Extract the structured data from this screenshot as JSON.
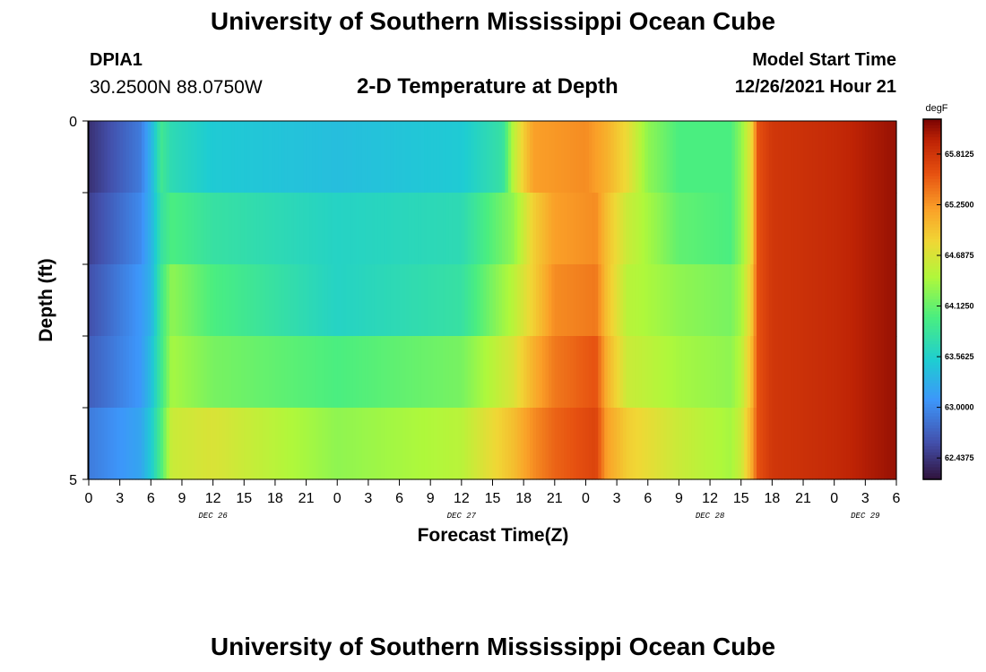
{
  "header": {
    "title": "University of Southern Mississippi Ocean Cube",
    "station": "DPIA1",
    "coords": "30.2500N  88.0750W",
    "subtitle": "2-D Temperature at Depth",
    "start_label": "Model Start Time",
    "start_value": "12/26/2021 Hour 21"
  },
  "footer": {
    "title": "University of Southern Mississippi Ocean Cube"
  },
  "chart_data": {
    "type": "heatmap",
    "xlabel": "Forecast Time(Z)",
    "ylabel": "Depth (ft)",
    "x_hours": [
      0,
      3,
      6,
      9,
      12,
      15,
      18,
      21,
      24,
      27,
      30,
      33,
      36,
      39,
      42,
      45,
      48,
      51,
      54,
      57,
      60,
      63,
      66,
      69,
      72,
      75,
      78
    ],
    "x_tick_labels": [
      "0",
      "3",
      "6",
      "9",
      "12",
      "15",
      "18",
      "21",
      "0",
      "3",
      "6",
      "9",
      "12",
      "15",
      "18",
      "21",
      "0",
      "3",
      "6",
      "9",
      "12",
      "15",
      "18",
      "21",
      "0",
      "3",
      "6"
    ],
    "xlim_hours": [
      0,
      78
    ],
    "date_labels": [
      {
        "hour": 12,
        "text": "DEC 26"
      },
      {
        "hour": 36,
        "text": "DEC 27"
      },
      {
        "hour": 60,
        "text": "DEC 28"
      },
      {
        "hour": 75,
        "text": "DEC 29"
      }
    ],
    "ylim": [
      0,
      5
    ],
    "y_tick_labels": [
      "0",
      "5"
    ],
    "depth_rows": 5,
    "colorbar": {
      "unit": "degF",
      "vmin": 62.2,
      "vmax": 66.2,
      "tick_values": [
        62.4375,
        63.0,
        63.5625,
        64.125,
        64.6875,
        65.25,
        65.8125
      ],
      "tick_labels": [
        "62.4375",
        "63.0000",
        "63.5625",
        "64.1250",
        "64.6875",
        "65.2500",
        "65.8125"
      ]
    },
    "temperature_profiles": [
      {
        "depth_row": "top",
        "points": [
          [
            0,
            62.4
          ],
          [
            5,
            62.9
          ],
          [
            6,
            63.3
          ],
          [
            7,
            63.9
          ],
          [
            8,
            63.7
          ],
          [
            12,
            63.5
          ],
          [
            24,
            63.4
          ],
          [
            36,
            63.5
          ],
          [
            40,
            63.8
          ],
          [
            41,
            64.5
          ],
          [
            42,
            64.9
          ],
          [
            43,
            65.2
          ],
          [
            48,
            65.3
          ],
          [
            50,
            65.1
          ],
          [
            52,
            64.8
          ],
          [
            54,
            64.3
          ],
          [
            57,
            64.0
          ],
          [
            62,
            64.0
          ],
          [
            63,
            64.3
          ],
          [
            64,
            64.8
          ],
          [
            64.6,
            65.6
          ],
          [
            66,
            65.8
          ],
          [
            72,
            65.9
          ],
          [
            78,
            66.1
          ]
        ]
      },
      {
        "depth_row": "mid1",
        "points": [
          [
            0,
            62.5
          ],
          [
            5,
            63.0
          ],
          [
            6,
            63.3
          ],
          [
            7,
            63.8
          ],
          [
            8,
            64.0
          ],
          [
            12,
            63.8
          ],
          [
            24,
            63.6
          ],
          [
            36,
            63.7
          ],
          [
            41,
            64.3
          ],
          [
            43,
            64.9
          ],
          [
            45,
            65.2
          ],
          [
            49,
            65.3
          ],
          [
            50,
            65.0
          ],
          [
            52,
            64.6
          ],
          [
            57,
            64.1
          ],
          [
            62,
            64.0
          ],
          [
            63,
            64.3
          ],
          [
            64,
            64.8
          ],
          [
            64.6,
            65.6
          ],
          [
            66,
            65.8
          ],
          [
            72,
            65.9
          ],
          [
            78,
            66.1
          ]
        ]
      },
      {
        "depth_row": "mid2",
        "points": [
          [
            0,
            62.6
          ],
          [
            5,
            63.1
          ],
          [
            6,
            63.3
          ],
          [
            7,
            63.9
          ],
          [
            8,
            64.3
          ],
          [
            12,
            64.0
          ],
          [
            24,
            63.6
          ],
          [
            36,
            63.8
          ],
          [
            41,
            64.5
          ],
          [
            43,
            64.9
          ],
          [
            45,
            65.3
          ],
          [
            49,
            65.4
          ],
          [
            50,
            65.0
          ],
          [
            52,
            64.5
          ],
          [
            57,
            64.3
          ],
          [
            62,
            64.2
          ],
          [
            63,
            64.4
          ],
          [
            64,
            64.9
          ],
          [
            64.6,
            65.6
          ],
          [
            66,
            65.8
          ],
          [
            72,
            65.9
          ],
          [
            78,
            66.1
          ]
        ]
      },
      {
        "depth_row": "mid3",
        "points": [
          [
            0,
            62.7
          ],
          [
            5,
            63.1
          ],
          [
            6,
            63.4
          ],
          [
            7,
            63.9
          ],
          [
            8,
            64.4
          ],
          [
            12,
            64.2
          ],
          [
            24,
            64.0
          ],
          [
            36,
            64.2
          ],
          [
            41,
            64.7
          ],
          [
            43,
            65.1
          ],
          [
            45,
            65.4
          ],
          [
            49,
            65.6
          ],
          [
            50,
            65.1
          ],
          [
            52,
            64.6
          ],
          [
            57,
            64.4
          ],
          [
            62,
            64.3
          ],
          [
            63,
            64.5
          ],
          [
            64,
            65.0
          ],
          [
            64.6,
            65.6
          ],
          [
            66,
            65.8
          ],
          [
            72,
            65.9
          ],
          [
            78,
            66.1
          ]
        ]
      },
      {
        "depth_row": "bottom",
        "points": [
          [
            0,
            62.9
          ],
          [
            5,
            63.2
          ],
          [
            6,
            63.5
          ],
          [
            7,
            64.0
          ],
          [
            8,
            64.6
          ],
          [
            12,
            64.7
          ],
          [
            24,
            64.3
          ],
          [
            36,
            64.5
          ],
          [
            41,
            65.0
          ],
          [
            43,
            65.3
          ],
          [
            45,
            65.5
          ],
          [
            49,
            65.7
          ],
          [
            50,
            65.2
          ],
          [
            52,
            64.9
          ],
          [
            57,
            64.6
          ],
          [
            62,
            64.4
          ],
          [
            63,
            64.6
          ],
          [
            64,
            65.1
          ],
          [
            64.6,
            65.6
          ],
          [
            66,
            65.8
          ],
          [
            72,
            65.9
          ],
          [
            78,
            66.1
          ]
        ]
      }
    ]
  }
}
